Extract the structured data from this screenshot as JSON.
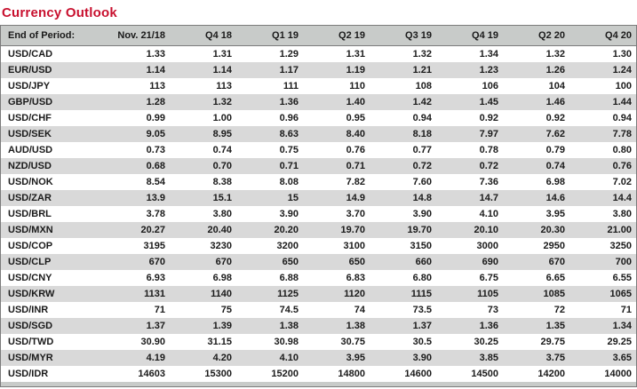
{
  "title": "Currency Outlook",
  "colors": {
    "title_red": "#C8102E",
    "header_bg": "#C8CBC9",
    "stripe_bg": "#D9D9D9",
    "border": "#7B7B7B",
    "text": "#1A1A1A"
  },
  "table": {
    "columns": [
      "End of Period:",
      "Nov. 21/18",
      "Q4 18",
      "Q1 19",
      "Q2 19",
      "Q3 19",
      "Q4 19",
      "Q2 20",
      "Q4 20"
    ],
    "rows": [
      {
        "pair": "USD/CAD",
        "values": [
          "1.33",
          "1.31",
          "1.29",
          "1.31",
          "1.32",
          "1.34",
          "1.32",
          "1.30"
        ]
      },
      {
        "pair": "EUR/USD",
        "values": [
          "1.14",
          "1.14",
          "1.17",
          "1.19",
          "1.21",
          "1.23",
          "1.26",
          "1.24"
        ]
      },
      {
        "pair": "USD/JPY",
        "values": [
          "113",
          "113",
          "111",
          "110",
          "108",
          "106",
          "104",
          "100"
        ]
      },
      {
        "pair": "GBP/USD",
        "values": [
          "1.28",
          "1.32",
          "1.36",
          "1.40",
          "1.42",
          "1.45",
          "1.46",
          "1.44"
        ]
      },
      {
        "pair": "USD/CHF",
        "values": [
          "0.99",
          "1.00",
          "0.96",
          "0.95",
          "0.94",
          "0.92",
          "0.92",
          "0.94"
        ]
      },
      {
        "pair": "USD/SEK",
        "values": [
          "9.05",
          "8.95",
          "8.63",
          "8.40",
          "8.18",
          "7.97",
          "7.62",
          "7.78"
        ]
      },
      {
        "pair": "AUD/USD",
        "values": [
          "0.73",
          "0.74",
          "0.75",
          "0.76",
          "0.77",
          "0.78",
          "0.79",
          "0.80"
        ]
      },
      {
        "pair": "NZD/USD",
        "values": [
          "0.68",
          "0.70",
          "0.71",
          "0.71",
          "0.72",
          "0.72",
          "0.74",
          "0.76"
        ]
      },
      {
        "pair": "USD/NOK",
        "values": [
          "8.54",
          "8.38",
          "8.08",
          "7.82",
          "7.60",
          "7.36",
          "6.98",
          "7.02"
        ]
      },
      {
        "pair": "USD/ZAR",
        "values": [
          "13.9",
          "15.1",
          "15",
          "14.9",
          "14.8",
          "14.7",
          "14.6",
          "14.4"
        ]
      },
      {
        "pair": "USD/BRL",
        "values": [
          "3.78",
          "3.80",
          "3.90",
          "3.70",
          "3.90",
          "4.10",
          "3.95",
          "3.80"
        ]
      },
      {
        "pair": "USD/MXN",
        "values": [
          "20.27",
          "20.40",
          "20.20",
          "19.70",
          "19.70",
          "20.10",
          "20.30",
          "21.00"
        ]
      },
      {
        "pair": "USD/COP",
        "values": [
          "3195",
          "3230",
          "3200",
          "3100",
          "3150",
          "3000",
          "2950",
          "3250"
        ]
      },
      {
        "pair": "USD/CLP",
        "values": [
          "670",
          "670",
          "650",
          "650",
          "660",
          "690",
          "670",
          "700"
        ]
      },
      {
        "pair": "USD/CNY",
        "values": [
          "6.93",
          "6.98",
          "6.88",
          "6.83",
          "6.80",
          "6.75",
          "6.65",
          "6.55"
        ]
      },
      {
        "pair": "USD/KRW",
        "values": [
          "1131",
          "1140",
          "1125",
          "1120",
          "1115",
          "1105",
          "1085",
          "1065"
        ]
      },
      {
        "pair": "USD/INR",
        "values": [
          "71",
          "75",
          "74.5",
          "74",
          "73.5",
          "73",
          "72",
          "71"
        ]
      },
      {
        "pair": "USD/SGD",
        "values": [
          "1.37",
          "1.39",
          "1.38",
          "1.38",
          "1.37",
          "1.36",
          "1.35",
          "1.34"
        ]
      },
      {
        "pair": "USD/TWD",
        "values": [
          "30.90",
          "31.15",
          "30.98",
          "30.75",
          "30.5",
          "30.25",
          "29.75",
          "29.25"
        ]
      },
      {
        "pair": "USD/MYR",
        "values": [
          "4.19",
          "4.20",
          "4.10",
          "3.95",
          "3.90",
          "3.85",
          "3.75",
          "3.65"
        ]
      },
      {
        "pair": "USD/IDR",
        "values": [
          "14603",
          "15300",
          "15200",
          "14800",
          "14600",
          "14500",
          "14200",
          "14000"
        ]
      }
    ]
  }
}
